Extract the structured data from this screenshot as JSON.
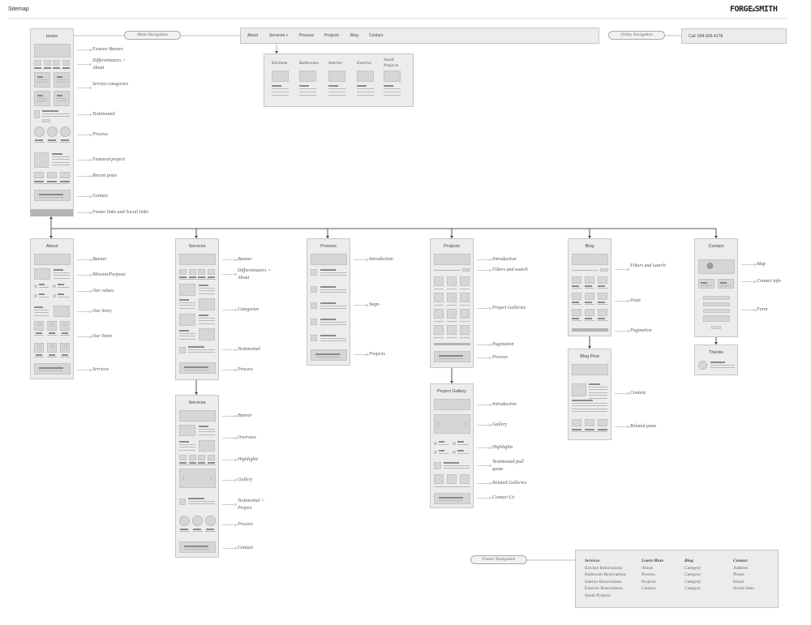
{
  "header": {
    "title": "Sitemap",
    "logo": "FORGE & SMITH"
  },
  "main_nav": {
    "label": "Main Navigation",
    "items": [
      "About",
      "Services +",
      "Process",
      "Projects",
      "Blog",
      "Contact"
    ],
    "dropdown": [
      "Kitchens",
      "Bathrooms",
      "Interior",
      "Exterior",
      "Small Projects"
    ]
  },
  "utility_nav": {
    "label": "Utility Navigation",
    "call_label": "Call",
    "phone": "604-606-4178"
  },
  "pages": {
    "home": {
      "title": "Home",
      "sections": [
        "Feature Banner",
        "Differentiators > About",
        "Service categories",
        "Testimonial",
        "Process",
        "Featured project",
        "Recent posts",
        "Contact",
        "Footer links and Social links"
      ]
    },
    "about": {
      "title": "About",
      "sections": [
        "Banner",
        "Mission/Purpose",
        "Our values",
        "Our Story",
        "Our Team",
        "Services"
      ]
    },
    "services": {
      "title": "Services",
      "sections": [
        "Banner",
        "Differentiators > About",
        "Categories",
        "Testimonial",
        "Process"
      ]
    },
    "services_detail": {
      "title": "Services",
      "sections": [
        "Banner",
        "Overview",
        "Highlights",
        "Gallery",
        "Testimonial > Project",
        "Process",
        "Contact"
      ]
    },
    "process": {
      "title": "Process",
      "sections": [
        "Introduction",
        "Steps",
        "Projects"
      ]
    },
    "projects": {
      "title": "Projects",
      "sections": [
        "Introduction",
        "Filters and search",
        "Project Galleries",
        "Pagination",
        "Process"
      ]
    },
    "project_gallery": {
      "title": "Project Gallery",
      "sections": [
        "Introduction",
        "Gallery",
        "Highlights",
        "Testimonial pull quote",
        "Related Galleries",
        "Contact Us"
      ]
    },
    "blog": {
      "title": "Blog",
      "sections": [
        "Filters and search",
        "Posts",
        "Pagination"
      ]
    },
    "blog_post": {
      "title": "Blog Post",
      "sections": [
        "Content",
        "Related posts"
      ]
    },
    "contact": {
      "title": "Contact",
      "sections": [
        "Map",
        "Contact info",
        "Form"
      ]
    },
    "thanks": {
      "title": "Thanks",
      "sections": []
    }
  },
  "footer_nav": {
    "label": "Footer Navigation",
    "columns": [
      {
        "heading": "Services",
        "links": [
          "Kitchen Renovations",
          "Bathroom Renovations",
          "Interior Renovations",
          "Exterior Renovations",
          "Small Projects"
        ]
      },
      {
        "heading": "Learn More",
        "links": [
          "About",
          "Process",
          "Projects",
          "Contact"
        ]
      },
      {
        "heading": "Blog",
        "links": [
          "Category",
          "Category",
          "Category",
          "Category"
        ]
      },
      {
        "heading": "Contact",
        "links": [
          "Address",
          "Phone",
          "Email",
          "Social links"
        ]
      }
    ]
  }
}
